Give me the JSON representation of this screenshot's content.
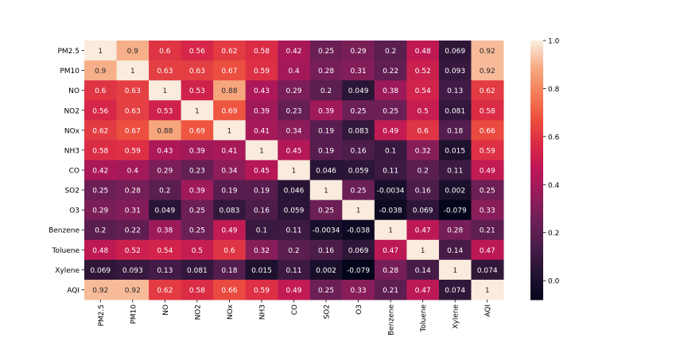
{
  "chart_data": {
    "type": "heatmap",
    "title": "",
    "xlabel": "",
    "ylabel": "",
    "labels": [
      "PM2.5",
      "PM10",
      "NO",
      "NO2",
      "NOx",
      "NH3",
      "CO",
      "SO2",
      "O3",
      "Benzene",
      "Toluene",
      "Xylene",
      "AQI"
    ],
    "values": [
      [
        "1",
        "0.9",
        "0.6",
        "0.56",
        "0.62",
        "0.58",
        "0.42",
        "0.25",
        "0.29",
        "0.2",
        "0.48",
        "0.069",
        "0.92"
      ],
      [
        "0.9",
        "1",
        "0.63",
        "0.63",
        "0.67",
        "0.59",
        "0.4",
        "0.28",
        "0.31",
        "0.22",
        "0.52",
        "0.093",
        "0.92"
      ],
      [
        "0.6",
        "0.63",
        "1",
        "0.53",
        "0.88",
        "0.43",
        "0.29",
        "0.2",
        "0.049",
        "0.38",
        "0.54",
        "0.13",
        "0.62"
      ],
      [
        "0.56",
        "0.63",
        "0.53",
        "1",
        "0.69",
        "0.39",
        "0.23",
        "0.39",
        "0.25",
        "0.25",
        "0.5",
        "0.081",
        "0.58"
      ],
      [
        "0.62",
        "0.67",
        "0.88",
        "0.69",
        "1",
        "0.41",
        "0.34",
        "0.19",
        "0.083",
        "0.49",
        "0.6",
        "0.18",
        "0.66"
      ],
      [
        "0.58",
        "0.59",
        "0.43",
        "0.39",
        "0.41",
        "1",
        "0.45",
        "0.19",
        "0.16",
        "0.1",
        "0.32",
        "0.015",
        "0.59"
      ],
      [
        "0.42",
        "0.4",
        "0.29",
        "0.23",
        "0.34",
        "0.45",
        "1",
        "0.046",
        "0.059",
        "0.11",
        "0.2",
        "0.11",
        "0.49"
      ],
      [
        "0.25",
        "0.28",
        "0.2",
        "0.39",
        "0.19",
        "0.19",
        "0.046",
        "1",
        "0.25",
        "-0.0034",
        "0.16",
        "0.002",
        "0.25"
      ],
      [
        "0.29",
        "0.31",
        "0.049",
        "0.25",
        "0.083",
        "0.16",
        "0.059",
        "0.25",
        "1",
        "-0.038",
        "0.069",
        "-0.079",
        "0.33"
      ],
      [
        "0.2",
        "0.22",
        "0.38",
        "0.25",
        "0.49",
        "0.1",
        "0.11",
        "-0.0034",
        "-0.038",
        "1",
        "0.47",
        "0.28",
        "0.21"
      ],
      [
        "0.48",
        "0.52",
        "0.54",
        "0.5",
        "0.6",
        "0.32",
        "0.2",
        "0.16",
        "0.069",
        "0.47",
        "1",
        "0.14",
        "0.47"
      ],
      [
        "0.069",
        "0.093",
        "0.13",
        "0.081",
        "0.18",
        "0.015",
        "0.11",
        "0.002",
        "-0.079",
        "0.28",
        "0.14",
        "1",
        "0.074"
      ],
      [
        "0.92",
        "0.92",
        "0.62",
        "0.58",
        "0.66",
        "0.59",
        "0.49",
        "0.25",
        "0.33",
        "0.21",
        "0.47",
        "0.074",
        "1"
      ]
    ],
    "colorbar": {
      "range": [
        -0.079,
        1.0
      ],
      "ticks": [
        "0.0",
        "0.2",
        "0.4",
        "0.6",
        "0.8",
        "1.0"
      ],
      "tick_values": [
        0.0,
        0.2,
        0.4,
        0.6,
        0.8,
        1.0
      ]
    },
    "colormap_stops": [
      "#03051A",
      "#221331",
      "#451C47",
      "#691F55",
      "#921C5B",
      "#B91657",
      "#D92847",
      "#ED503E",
      "#F47D57",
      "#F6AA82",
      "#FAEBDD"
    ]
  }
}
